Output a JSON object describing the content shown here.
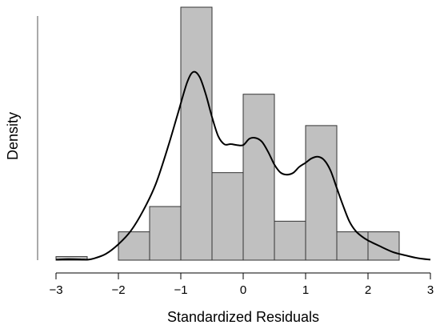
{
  "chart_data": {
    "type": "histogram",
    "xlabel": "Standardized Residuals",
    "ylabel": "Density",
    "xlim": [
      -3,
      3
    ],
    "x_ticks": [
      "−3",
      "−2",
      "−1",
      "0",
      "1",
      "2",
      "3"
    ],
    "bin_edges": [
      -3,
      -2.5,
      -2,
      -1.5,
      -1,
      -0.5,
      0,
      0.5,
      1,
      1.5,
      2,
      2.5
    ],
    "bar_heights": [
      0.014,
      0,
      0.112,
      0.212,
      1.0,
      0.346,
      0.656,
      0.154,
      0.532,
      0.112,
      0.112
    ],
    "density_curve": {
      "x": [
        -3,
        -2.8,
        -2.6,
        -2.5,
        -2.4,
        -2.2,
        -2.0,
        -1.8,
        -1.6,
        -1.4,
        -1.2,
        -1.05,
        -0.9,
        -0.8,
        -0.7,
        -0.6,
        -0.5,
        -0.4,
        -0.3,
        -0.2,
        -0.1,
        0.0,
        0.1,
        0.2,
        0.3,
        0.4,
        0.5,
        0.6,
        0.7,
        0.8,
        0.9,
        1.0,
        1.1,
        1.2,
        1.3,
        1.4,
        1.5,
        1.6,
        1.7,
        1.8,
        1.9,
        2.0,
        2.2,
        2.4,
        2.6,
        2.8,
        3.0
      ],
      "y": [
        0.002,
        0.004,
        0.003,
        0.002,
        0.006,
        0.025,
        0.063,
        0.116,
        0.197,
        0.302,
        0.452,
        0.577,
        0.702,
        0.744,
        0.725,
        0.656,
        0.566,
        0.49,
        0.458,
        0.459,
        0.455,
        0.455,
        0.48,
        0.483,
        0.468,
        0.428,
        0.378,
        0.346,
        0.338,
        0.345,
        0.369,
        0.385,
        0.403,
        0.409,
        0.395,
        0.354,
        0.285,
        0.216,
        0.154,
        0.116,
        0.094,
        0.078,
        0.054,
        0.032,
        0.019,
        0.008,
        0.002
      ]
    },
    "colors": {
      "bar_fill": "#c0c0c0",
      "bar_stroke": "#333333",
      "curve": "#000000"
    }
  }
}
